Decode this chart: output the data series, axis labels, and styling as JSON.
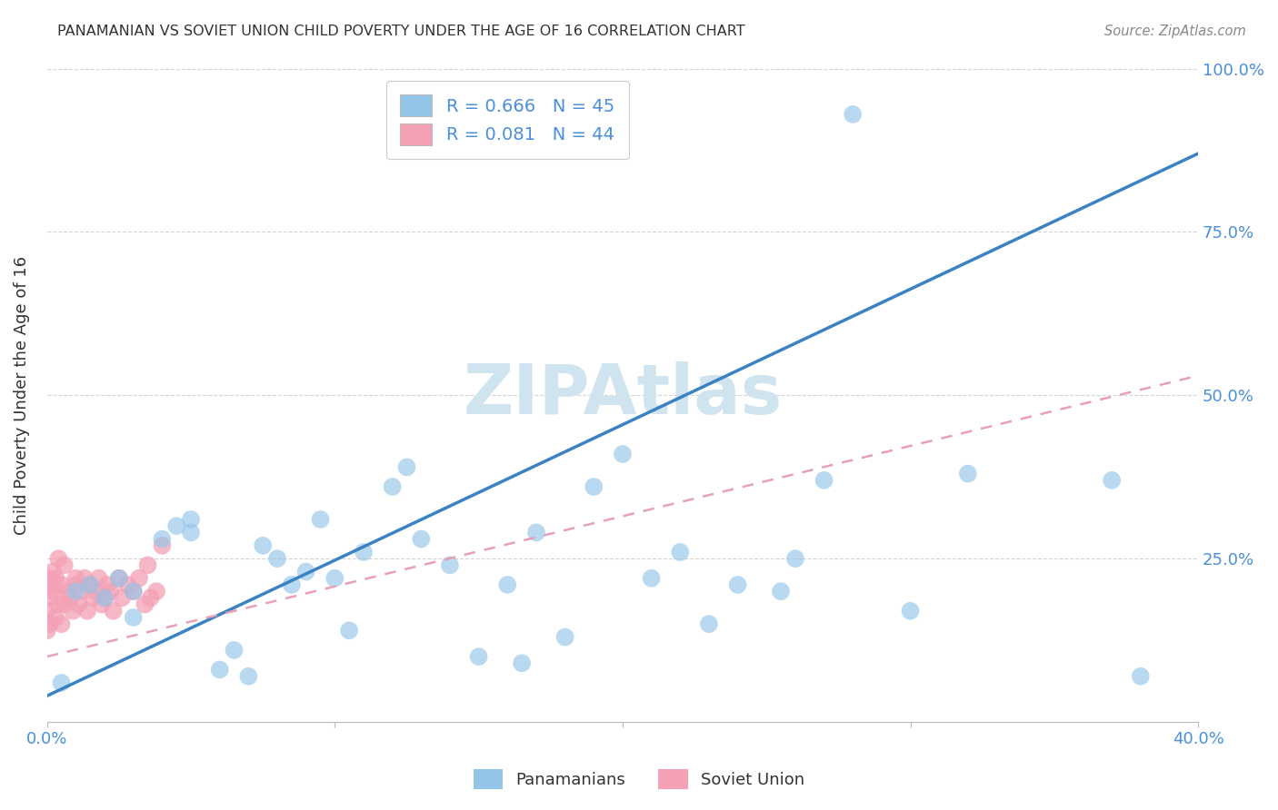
{
  "title": "PANAMANIAN VS SOVIET UNION CHILD POVERTY UNDER THE AGE OF 16 CORRELATION CHART",
  "source": "Source: ZipAtlas.com",
  "ylabel": "Child Poverty Under the Age of 16",
  "xlim": [
    0,
    0.4
  ],
  "ylim": [
    0,
    1.0
  ],
  "ytick_vals": [
    0.0,
    0.25,
    0.5,
    0.75,
    1.0
  ],
  "ytick_labels": [
    "",
    "25.0%",
    "50.0%",
    "75.0%",
    "100.0%"
  ],
  "xtick_vals": [
    0.0,
    0.1,
    0.2,
    0.3,
    0.4
  ],
  "xtick_labels": [
    "0.0%",
    "",
    "",
    "",
    "40.0%"
  ],
  "blue_R": 0.666,
  "blue_N": 45,
  "pink_R": 0.081,
  "pink_N": 44,
  "blue_dot_color": "#92C5E8",
  "pink_dot_color": "#F4A0B5",
  "blue_line_color": "#3A82C4",
  "pink_line_color": "#E8A0B8",
  "title_color": "#333333",
  "axis_tick_color": "#4A90D9",
  "ylabel_color": "#333333",
  "watermark_color": "#D0E4F0",
  "grid_color": "#D0D0D0",
  "bottom_spine_color": "#BBBBBB",
  "blue_line_x": [
    0.0,
    0.4
  ],
  "blue_line_y": [
    0.04,
    0.87
  ],
  "pink_line_x": [
    0.0,
    0.4
  ],
  "pink_line_y": [
    0.1,
    0.53
  ],
  "blue_scatter_x": [
    0.005,
    0.01,
    0.015,
    0.02,
    0.025,
    0.03,
    0.03,
    0.04,
    0.045,
    0.05,
    0.05,
    0.06,
    0.065,
    0.07,
    0.075,
    0.08,
    0.085,
    0.09,
    0.095,
    0.1,
    0.105,
    0.11,
    0.12,
    0.125,
    0.13,
    0.14,
    0.15,
    0.16,
    0.165,
    0.17,
    0.18,
    0.19,
    0.2,
    0.21,
    0.22,
    0.23,
    0.24,
    0.255,
    0.26,
    0.27,
    0.28,
    0.3,
    0.32,
    0.37,
    0.38
  ],
  "blue_scatter_y": [
    0.06,
    0.2,
    0.21,
    0.19,
    0.22,
    0.16,
    0.2,
    0.28,
    0.3,
    0.31,
    0.29,
    0.08,
    0.11,
    0.07,
    0.27,
    0.25,
    0.21,
    0.23,
    0.31,
    0.22,
    0.14,
    0.26,
    0.36,
    0.39,
    0.28,
    0.24,
    0.1,
    0.21,
    0.09,
    0.29,
    0.13,
    0.36,
    0.41,
    0.22,
    0.26,
    0.15,
    0.21,
    0.2,
    0.25,
    0.37,
    0.93,
    0.17,
    0.38,
    0.37,
    0.07
  ],
  "pink_scatter_x": [
    0.0,
    0.0,
    0.0,
    0.001,
    0.001,
    0.001,
    0.002,
    0.002,
    0.003,
    0.003,
    0.004,
    0.004,
    0.005,
    0.005,
    0.006,
    0.006,
    0.007,
    0.008,
    0.009,
    0.01,
    0.01,
    0.011,
    0.012,
    0.013,
    0.014,
    0.015,
    0.016,
    0.017,
    0.018,
    0.019,
    0.02,
    0.021,
    0.022,
    0.023,
    0.025,
    0.026,
    0.028,
    0.03,
    0.032,
    0.034,
    0.035,
    0.036,
    0.038,
    0.04
  ],
  "pink_scatter_y": [
    0.14,
    0.17,
    0.22,
    0.19,
    0.21,
    0.15,
    0.2,
    0.23,
    0.16,
    0.22,
    0.18,
    0.25,
    0.15,
    0.21,
    0.18,
    0.24,
    0.2,
    0.19,
    0.17,
    0.22,
    0.21,
    0.18,
    0.2,
    0.22,
    0.17,
    0.21,
    0.19,
    0.2,
    0.22,
    0.18,
    0.19,
    0.21,
    0.2,
    0.17,
    0.22,
    0.19,
    0.21,
    0.2,
    0.22,
    0.18,
    0.24,
    0.19,
    0.2,
    0.27
  ],
  "legend_blue_label": "R = 0.666   N = 45",
  "legend_pink_label": "R = 0.081   N = 44",
  "legend_bottom_blue": "Panamanians",
  "legend_bottom_pink": "Soviet Union"
}
